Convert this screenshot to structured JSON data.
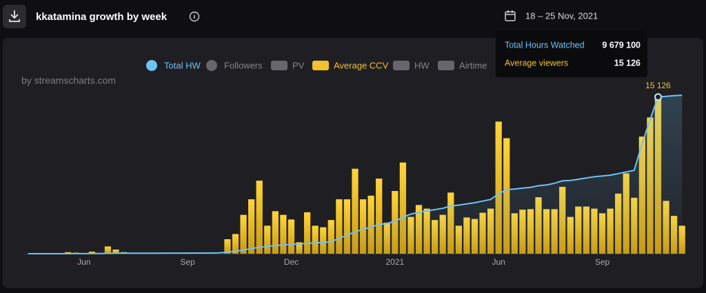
{
  "header": {
    "title": "kkatamina growth by week",
    "date_range": "18 – 25 Nov, 2021"
  },
  "chart_data": {
    "type": "bar-line",
    "watermark": "by streamscharts.com",
    "categories": [
      null,
      null,
      null,
      null,
      null,
      null,
      null,
      "Jun",
      null,
      null,
      null,
      null,
      null,
      null,
      null,
      null,
      null,
      null,
      null,
      null,
      "Sep",
      null,
      null,
      null,
      null,
      null,
      null,
      null,
      null,
      null,
      null,
      null,
      null,
      "Dec",
      null,
      null,
      null,
      null,
      null,
      null,
      null,
      null,
      null,
      null,
      null,
      null,
      "2021",
      null,
      null,
      null,
      null,
      null,
      null,
      null,
      null,
      null,
      null,
      null,
      null,
      "Jun",
      null,
      null,
      null,
      null,
      null,
      null,
      null,
      null,
      null,
      null,
      null,
      null,
      "Sep",
      null,
      null,
      null,
      null,
      null,
      null,
      null,
      null,
      null,
      null
    ],
    "ylim": [
      0,
      16500
    ],
    "y2lim": [
      0,
      10560000
    ],
    "series": [
      {
        "name": "Total HW",
        "type": "line",
        "axis": "y2",
        "color": "#6ec3f4",
        "values": [
          0,
          0,
          0,
          0,
          0,
          2000,
          4000,
          5000,
          8000,
          9000,
          20000,
          28000,
          32000,
          33000,
          34000,
          35000,
          36000,
          37000,
          38000,
          39000,
          40000,
          41000,
          42000,
          43000,
          50000,
          100000,
          150000,
          230000,
          320000,
          400000,
          450000,
          500000,
          540000,
          580000,
          600000,
          640000,
          670000,
          700000,
          740000,
          950000,
          1150000,
          1350000,
          1500000,
          1650000,
          1800000,
          1870000,
          2000000,
          2250000,
          2450000,
          2550000,
          2650000,
          2720000,
          2800000,
          2950000,
          3000000,
          3080000,
          3150000,
          3250000,
          3350000,
          3700000,
          3950000,
          4000000,
          4050000,
          4100000,
          4200000,
          4250000,
          4350000,
          4500000,
          4520000,
          4600000,
          4680000,
          4750000,
          4800000,
          4850000,
          4950000,
          5050000,
          5150000,
          6800000,
          8300000,
          9679100,
          9720000,
          9760000,
          9790000
        ]
      },
      {
        "name": "Average CCV",
        "type": "bar",
        "color": "#f2c12e",
        "values": [
          0,
          0,
          0,
          0,
          0,
          150,
          100,
          0,
          200,
          0,
          700,
          400,
          150,
          0,
          0,
          0,
          0,
          0,
          0,
          0,
          0,
          0,
          0,
          0,
          0,
          1400,
          1900,
          3750,
          5250,
          7050,
          2700,
          4100,
          3750,
          3300,
          1100,
          4000,
          2700,
          2550,
          3250,
          5250,
          5250,
          8200,
          5250,
          5600,
          7250,
          3000,
          6050,
          8800,
          3550,
          4700,
          4350,
          3250,
          3750,
          5900,
          2700,
          3500,
          3350,
          3950,
          4350,
          12750,
          11150,
          3900,
          4250,
          4300,
          5450,
          4300,
          4300,
          6450,
          3550,
          4550,
          4550,
          4350,
          3900,
          4350,
          5800,
          7750,
          5400,
          11300,
          13150,
          15126,
          5100,
          3650,
          2700
        ],
        "value_labels": [
          null,
          null,
          null,
          null,
          null,
          null,
          null,
          null,
          null,
          null,
          null,
          null,
          null,
          null,
          null,
          null,
          null,
          null,
          null,
          null,
          null,
          null,
          null,
          null,
          null,
          null,
          null,
          null,
          null,
          null,
          null,
          null,
          null,
          null,
          null,
          null,
          null,
          null,
          null,
          null,
          null,
          null,
          null,
          null,
          null,
          null,
          null,
          null,
          null,
          null,
          null,
          null,
          null,
          null,
          null,
          null,
          null,
          null,
          null,
          null,
          null,
          null,
          null,
          null,
          null,
          null,
          null,
          null,
          null,
          null,
          null,
          null,
          null,
          null,
          null,
          null,
          null,
          null,
          null,
          "15 126",
          null,
          null,
          null
        ]
      }
    ],
    "hidden_series": [
      {
        "name": "Followers",
        "shape": "circle"
      },
      {
        "name": "PV",
        "shape": "rect"
      },
      {
        "name": "HW",
        "shape": "rect"
      },
      {
        "name": "Airtime",
        "shape": "rect"
      }
    ],
    "legend": "top",
    "tooltip": {
      "rows": [
        {
          "label": "Total Hours Watched",
          "value": 9679100,
          "value_label": "9 679 100",
          "color": "#6ec3f4"
        },
        {
          "label": "Average viewers",
          "value": 15126,
          "value_label": "15 126",
          "color": "#f2c12e"
        }
      ]
    }
  }
}
